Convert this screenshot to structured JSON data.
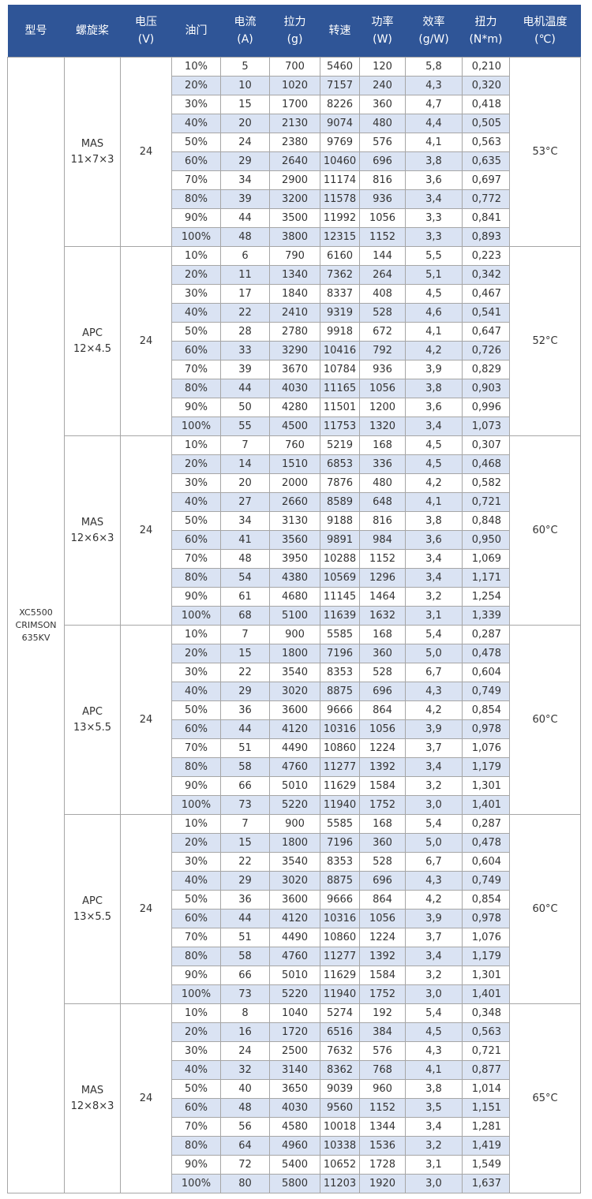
{
  "headers": [
    [
      "型号"
    ],
    [
      "螺旋桨"
    ],
    [
      "电压",
      "(V)"
    ],
    [
      "油门"
    ],
    [
      "电流",
      "(A)"
    ],
    [
      "拉力",
      "(g)"
    ],
    [
      "转速"
    ],
    [
      "功率",
      "(W)"
    ],
    [
      "效率",
      "(g/W)"
    ],
    [
      "扭力",
      "(N*m)"
    ],
    [
      "电机温度",
      "(℃)"
    ]
  ],
  "colors": {
    "header_bg": "#2f5597",
    "alt_row_bg": "#dae3f3",
    "border": "#a6a6a6"
  },
  "model": [
    "XC5500",
    "CRIMSON",
    "635KV"
  ],
  "groups": [
    {
      "prop": [
        "MAS",
        "11×7×3"
      ],
      "voltage": "24",
      "temp": "53°C",
      "rows": [
        [
          "10%",
          "5",
          "700",
          "5460",
          "120",
          "5,8",
          "0,210"
        ],
        [
          "20%",
          "10",
          "1020",
          "7157",
          "240",
          "4,3",
          "0,320"
        ],
        [
          "30%",
          "15",
          "1700",
          "8226",
          "360",
          "4,7",
          "0,418"
        ],
        [
          "40%",
          "20",
          "2130",
          "9074",
          "480",
          "4,4",
          "0,505"
        ],
        [
          "50%",
          "24",
          "2380",
          "9769",
          "576",
          "4,1",
          "0,563"
        ],
        [
          "60%",
          "29",
          "2640",
          "10460",
          "696",
          "3,8",
          "0,635"
        ],
        [
          "70%",
          "34",
          "2900",
          "11174",
          "816",
          "3,6",
          "0,697"
        ],
        [
          "80%",
          "39",
          "3200",
          "11578",
          "936",
          "3,4",
          "0,772"
        ],
        [
          "90%",
          "44",
          "3500",
          "11992",
          "1056",
          "3,3",
          "0,841"
        ],
        [
          "100%",
          "48",
          "3800",
          "12315",
          "1152",
          "3,3",
          "0,893"
        ]
      ]
    },
    {
      "prop": [
        "APC",
        "12×4.5"
      ],
      "voltage": "24",
      "temp": "52°C",
      "rows": [
        [
          "10%",
          "6",
          "790",
          "6160",
          "144",
          "5,5",
          "0,223"
        ],
        [
          "20%",
          "11",
          "1340",
          "7362",
          "264",
          "5,1",
          "0,342"
        ],
        [
          "30%",
          "17",
          "1840",
          "8337",
          "408",
          "4,5",
          "0,467"
        ],
        [
          "40%",
          "22",
          "2410",
          "9319",
          "528",
          "4,6",
          "0,541"
        ],
        [
          "50%",
          "28",
          "2780",
          "9918",
          "672",
          "4,1",
          "0,647"
        ],
        [
          "60%",
          "33",
          "3290",
          "10416",
          "792",
          "4,2",
          "0,726"
        ],
        [
          "70%",
          "39",
          "3670",
          "10784",
          "936",
          "3,9",
          "0,829"
        ],
        [
          "80%",
          "44",
          "4030",
          "11165",
          "1056",
          "3,8",
          "0,903"
        ],
        [
          "90%",
          "50",
          "4280",
          "11501",
          "1200",
          "3,6",
          "0,996"
        ],
        [
          "100%",
          "55",
          "4500",
          "11753",
          "1320",
          "3,4",
          "1,073"
        ]
      ]
    },
    {
      "prop": [
        "MAS",
        "12×6×3"
      ],
      "voltage": "24",
      "temp": "60°C",
      "rows": [
        [
          "10%",
          "7",
          "760",
          "5219",
          "168",
          "4,5",
          "0,307"
        ],
        [
          "20%",
          "14",
          "1510",
          "6853",
          "336",
          "4,5",
          "0,468"
        ],
        [
          "30%",
          "20",
          "2000",
          "7876",
          "480",
          "4,2",
          "0,582"
        ],
        [
          "40%",
          "27",
          "2660",
          "8589",
          "648",
          "4,1",
          "0,721"
        ],
        [
          "50%",
          "34",
          "3130",
          "9188",
          "816",
          "3,8",
          "0,848"
        ],
        [
          "60%",
          "41",
          "3560",
          "9891",
          "984",
          "3,6",
          "0,950"
        ],
        [
          "70%",
          "48",
          "3950",
          "10288",
          "1152",
          "3,4",
          "1,069"
        ],
        [
          "80%",
          "54",
          "4380",
          "10569",
          "1296",
          "3,4",
          "1,171"
        ],
        [
          "90%",
          "61",
          "4680",
          "11145",
          "1464",
          "3,2",
          "1,254"
        ],
        [
          "100%",
          "68",
          "5100",
          "11639",
          "1632",
          "3,1",
          "1,339"
        ]
      ]
    },
    {
      "prop": [
        "APC",
        "13×5.5"
      ],
      "voltage": "24",
      "temp": "60°C",
      "rows": [
        [
          "10%",
          "7",
          "900",
          "5585",
          "168",
          "5,4",
          "0,287"
        ],
        [
          "20%",
          "15",
          "1800",
          "7196",
          "360",
          "5,0",
          "0,478"
        ],
        [
          "30%",
          "22",
          "3540",
          "8353",
          "528",
          "6,7",
          "0,604"
        ],
        [
          "40%",
          "29",
          "3020",
          "8875",
          "696",
          "4,3",
          "0,749"
        ],
        [
          "50%",
          "36",
          "3600",
          "9666",
          "864",
          "4,2",
          "0,854"
        ],
        [
          "60%",
          "44",
          "4120",
          "10316",
          "1056",
          "3,9",
          "0,978"
        ],
        [
          "70%",
          "51",
          "4490",
          "10860",
          "1224",
          "3,7",
          "1,076"
        ],
        [
          "80%",
          "58",
          "4760",
          "11277",
          "1392",
          "3,4",
          "1,179"
        ],
        [
          "90%",
          "66",
          "5010",
          "11629",
          "1584",
          "3,2",
          "1,301"
        ],
        [
          "100%",
          "73",
          "5220",
          "11940",
          "1752",
          "3,0",
          "1,401"
        ]
      ]
    },
    {
      "prop": [
        "APC",
        "13×5.5"
      ],
      "voltage": "24",
      "temp": "60°C",
      "rows": [
        [
          "10%",
          "7",
          "900",
          "5585",
          "168",
          "5,4",
          "0,287"
        ],
        [
          "20%",
          "15",
          "1800",
          "7196",
          "360",
          "5,0",
          "0,478"
        ],
        [
          "30%",
          "22",
          "3540",
          "8353",
          "528",
          "6,7",
          "0,604"
        ],
        [
          "40%",
          "29",
          "3020",
          "8875",
          "696",
          "4,3",
          "0,749"
        ],
        [
          "50%",
          "36",
          "3600",
          "9666",
          "864",
          "4,2",
          "0,854"
        ],
        [
          "60%",
          "44",
          "4120",
          "10316",
          "1056",
          "3,9",
          "0,978"
        ],
        [
          "70%",
          "51",
          "4490",
          "10860",
          "1224",
          "3,7",
          "1,076"
        ],
        [
          "80%",
          "58",
          "4760",
          "11277",
          "1392",
          "3,4",
          "1,179"
        ],
        [
          "90%",
          "66",
          "5010",
          "11629",
          "1584",
          "3,2",
          "1,301"
        ],
        [
          "100%",
          "73",
          "5220",
          "11940",
          "1752",
          "3,0",
          "1,401"
        ]
      ]
    },
    {
      "prop": [
        "MAS",
        "12×8×3"
      ],
      "voltage": "24",
      "temp": "65°C",
      "rows": [
        [
          "10%",
          "8",
          "1040",
          "5274",
          "192",
          "5,4",
          "0,348"
        ],
        [
          "20%",
          "16",
          "1720",
          "6516",
          "384",
          "4,5",
          "0,563"
        ],
        [
          "30%",
          "24",
          "2500",
          "7632",
          "576",
          "4,3",
          "0,721"
        ],
        [
          "40%",
          "32",
          "3140",
          "8362",
          "768",
          "4,1",
          "0,877"
        ],
        [
          "50%",
          "40",
          "3650",
          "9039",
          "960",
          "3,8",
          "1,014"
        ],
        [
          "60%",
          "48",
          "4030",
          "9560",
          "1152",
          "3,5",
          "1,151"
        ],
        [
          "70%",
          "56",
          "4580",
          "10018",
          "1344",
          "3,4",
          "1,281"
        ],
        [
          "80%",
          "64",
          "4960",
          "10338",
          "1536",
          "3,2",
          "1,419"
        ],
        [
          "90%",
          "72",
          "5400",
          "10652",
          "1728",
          "3,1",
          "1,549"
        ],
        [
          "100%",
          "80",
          "5800",
          "11203",
          "1920",
          "3,0",
          "1,637"
        ]
      ]
    }
  ]
}
